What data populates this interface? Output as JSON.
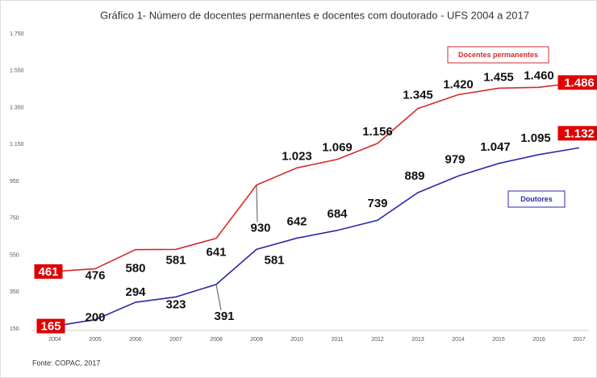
{
  "chart_data": {
    "type": "line",
    "title": "Gráfico 1- Número de docentes permanentes e docentes com doutorado - UFS 2004 a 2017",
    "source": "Fonte: COPAC, 2017",
    "categories": [
      "2004",
      "2005",
      "2006",
      "2007",
      "2008",
      "2009",
      "2010",
      "2011",
      "2012",
      "2013",
      "2014",
      "2015",
      "2016",
      "2017"
    ],
    "series": [
      {
        "name": "Docentes permanentes",
        "color": "#d42b2b",
        "values": [
          461,
          476,
          580,
          581,
          641,
          930,
          1023,
          1069,
          1156,
          1345,
          1420,
          1455,
          1460,
          1486
        ],
        "value_labels": [
          "461",
          "476",
          "580",
          "581",
          "641",
          "930",
          "1.023",
          "1.069",
          "1.156",
          "1.345",
          "1.420",
          "1.455",
          "1.460",
          "1.486"
        ]
      },
      {
        "name": "Doutores",
        "color": "#2a2aa8",
        "values": [
          165,
          200,
          294,
          323,
          391,
          581,
          642,
          684,
          739,
          889,
          979,
          1047,
          1095,
          1132
        ],
        "value_labels": [
          "165",
          "200",
          "294",
          "323",
          "391",
          "581",
          "642",
          "684",
          "739",
          "889",
          "979",
          "1.047",
          "1.095",
          "1.132"
        ]
      }
    ],
    "ylim": [
      150,
      1750
    ],
    "yticks": [
      150,
      350,
      550,
      750,
      950,
      {
        "value": 1150,
        "label": "1.150"
      },
      {
        "value": 1350,
        "label": "1.350"
      },
      {
        "value": 1550,
        "label": "1.550"
      },
      {
        "value": 1750,
        "label": "1.750"
      }
    ]
  }
}
